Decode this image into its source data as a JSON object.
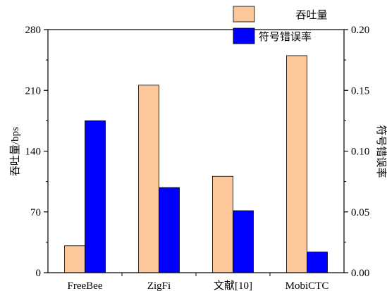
{
  "chart_data": {
    "type": "bar",
    "categories": [
      "FreeBee",
      "ZigFi",
      "文献[10]",
      "MobiCTC"
    ],
    "series": [
      {
        "name": "吞吐量",
        "axis": "left",
        "color": "#fcc89b",
        "values": [
          31,
          216,
          111,
          250
        ]
      },
      {
        "name": "符号错误率",
        "axis": "right",
        "color": "#0000ff",
        "values": [
          0.125,
          0.07,
          0.051,
          0.017
        ]
      }
    ],
    "ylabel": "吞吐量/bps",
    "y2label": "符号错误率",
    "ylim": [
      0,
      280
    ],
    "yticks": [
      "0",
      "70",
      "140",
      "210",
      "280"
    ],
    "y2lim": [
      0,
      0.2
    ],
    "y2ticks": [
      "0.00",
      "0.05",
      "0.10",
      "0.15",
      "0.20"
    ],
    "legend_position": "top-right",
    "grid": false
  }
}
